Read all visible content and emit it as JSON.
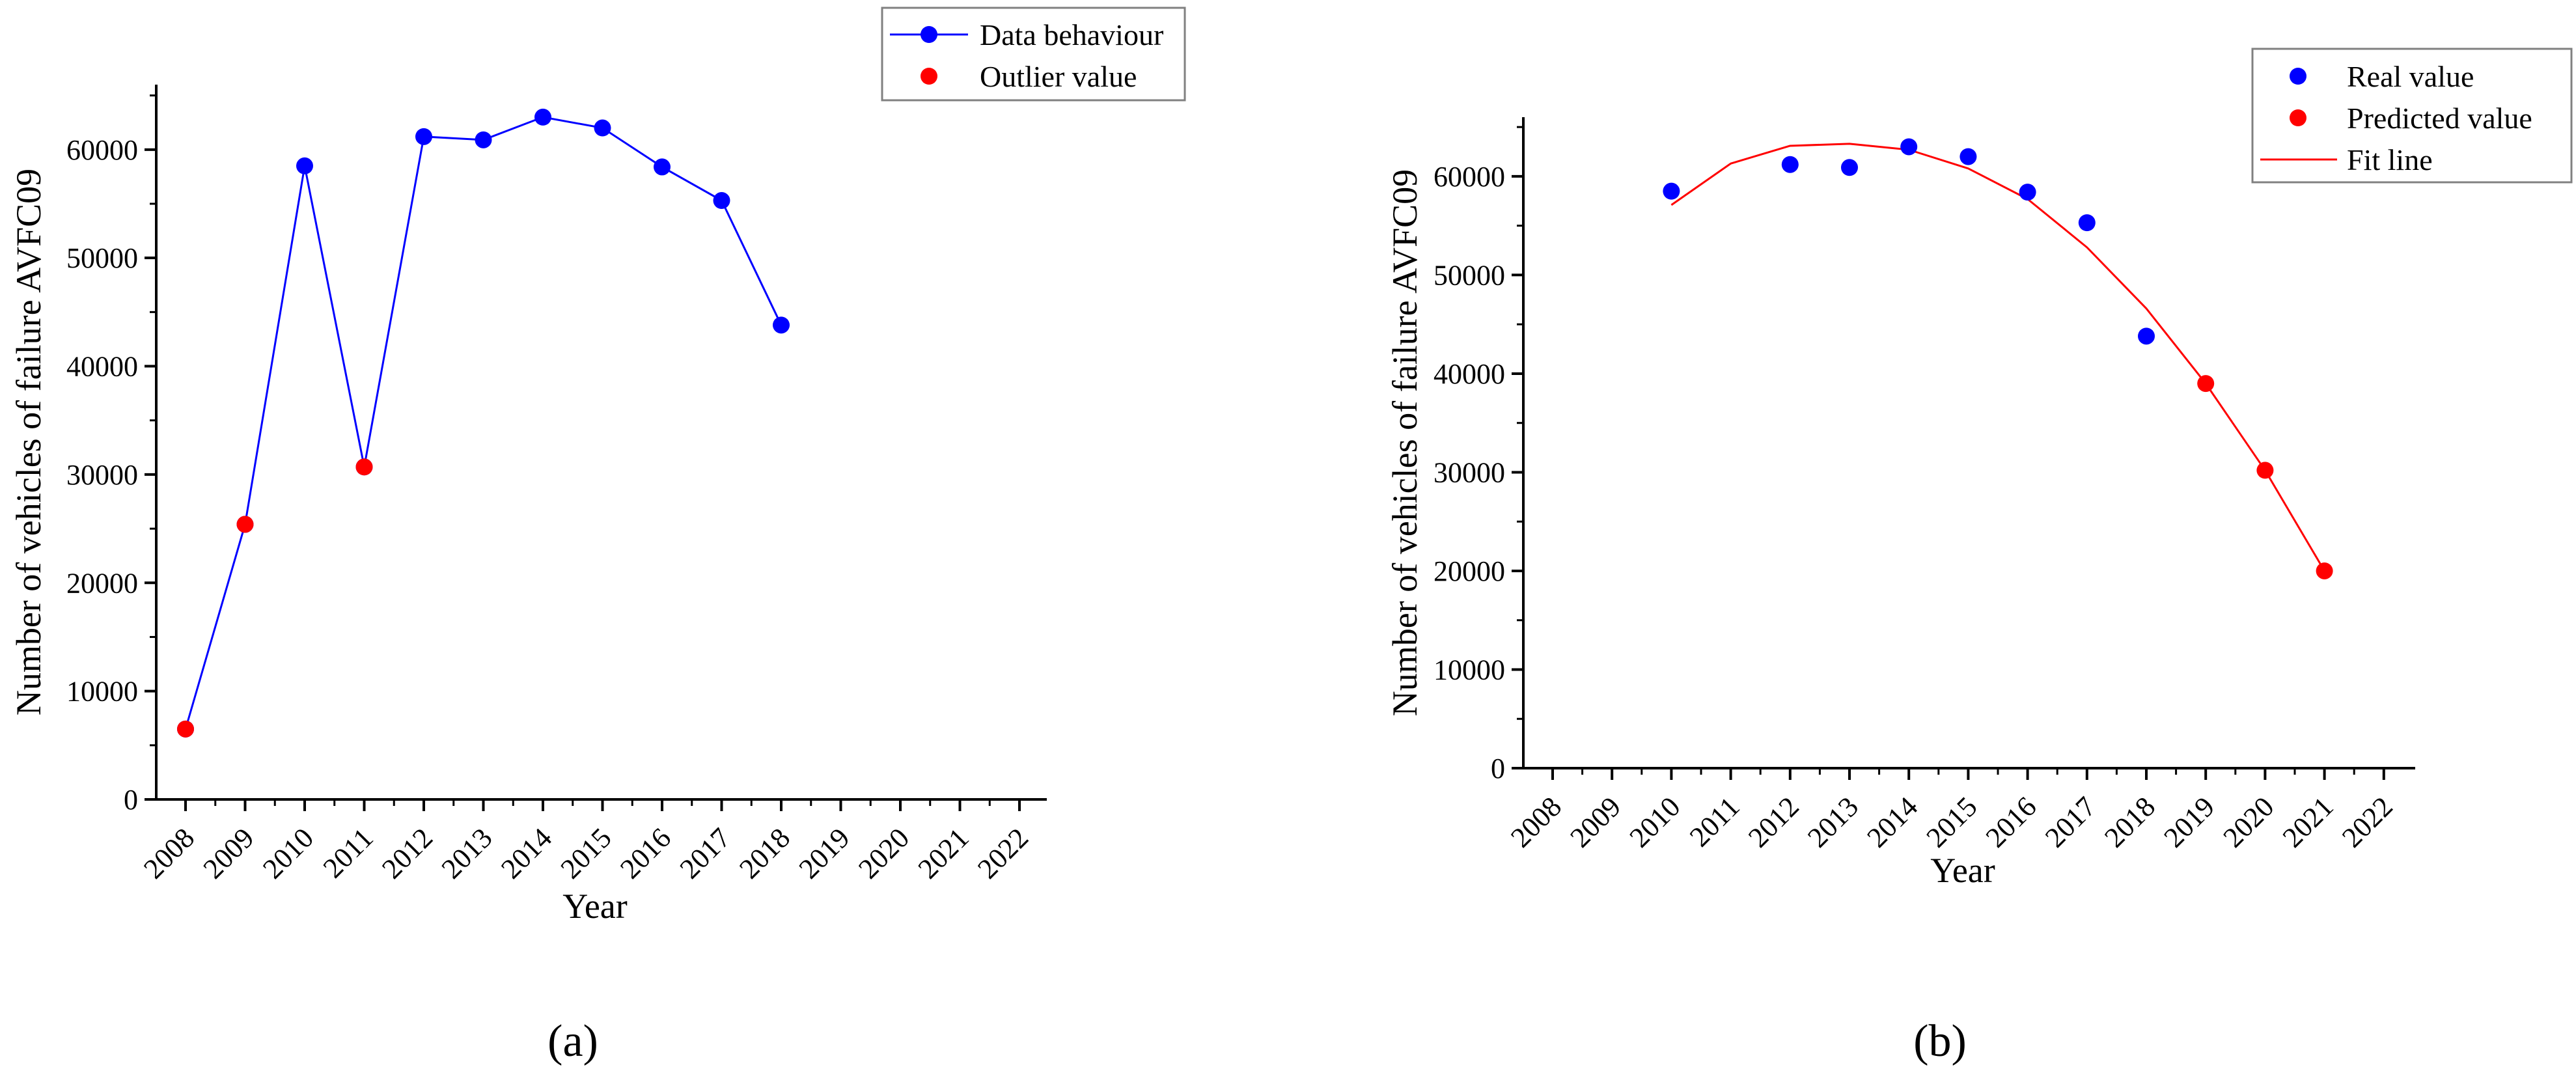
{
  "chart_data": [
    {
      "type": "line",
      "panel": "(a)",
      "xlabel": "Year",
      "ylabel": "Number of vehicles of failure AVFC09",
      "x_ticks": [
        "2008",
        "2009",
        "2010",
        "2011",
        "2012",
        "2013",
        "2014",
        "2015",
        "2016",
        "2017",
        "2018",
        "2019",
        "2020",
        "2021",
        "2022"
      ],
      "y_ticks": [
        "0",
        "10000",
        "20000",
        "30000",
        "40000",
        "50000",
        "60000"
      ],
      "ylim": [
        0,
        66000
      ],
      "grid": false,
      "legend_position": "top-right",
      "colors": {
        "data": "#0000ff",
        "outlier": "#ff0000"
      },
      "series": [
        {
          "name": "Data behaviour",
          "style": "line-marker",
          "x": [
            2008,
            2009,
            2010,
            2011,
            2012,
            2013,
            2014,
            2015,
            2016,
            2017,
            2018
          ],
          "y": [
            6500,
            25400,
            58500,
            30700,
            61200,
            60900,
            63000,
            62000,
            58400,
            55300,
            43800
          ]
        },
        {
          "name": "Outlier value",
          "style": "marker",
          "x": [
            2008,
            2009,
            2011
          ],
          "y": [
            6500,
            25400,
            30700
          ]
        }
      ]
    },
    {
      "type": "scatter",
      "panel": "(b)",
      "xlabel": "Year",
      "ylabel": "Number of vehicles of failure AVFC09",
      "x_ticks": [
        "2008",
        "2009",
        "2010",
        "2011",
        "2012",
        "2013",
        "2014",
        "2015",
        "2016",
        "2017",
        "2018",
        "2019",
        "2020",
        "2021",
        "2022"
      ],
      "y_ticks": [
        "0",
        "10000",
        "20000",
        "30000",
        "40000",
        "50000",
        "60000"
      ],
      "ylim": [
        0,
        66000
      ],
      "grid": false,
      "legend_position": "top-right",
      "colors": {
        "real": "#0000ff",
        "predicted": "#ff0000",
        "fit": "#ff0000"
      },
      "series": [
        {
          "name": "Real value",
          "style": "marker",
          "x": [
            2010,
            2012,
            2013,
            2014,
            2015,
            2016,
            2017,
            2018
          ],
          "y": [
            58500,
            61200,
            60900,
            63000,
            62000,
            58400,
            55300,
            43800
          ]
        },
        {
          "name": "Predicted value",
          "style": "marker",
          "x": [
            2019,
            2020,
            2021
          ],
          "y": [
            39000,
            30200,
            20000
          ]
        },
        {
          "name": "Fit line",
          "style": "line",
          "x": [
            2010,
            2011,
            2012,
            2013,
            2014,
            2015,
            2016,
            2017,
            2018,
            2019,
            2020,
            2021
          ],
          "y": [
            57100,
            61300,
            63100,
            63300,
            62700,
            60800,
            57700,
            52800,
            46600,
            39000,
            30200,
            20000
          ]
        }
      ]
    }
  ]
}
